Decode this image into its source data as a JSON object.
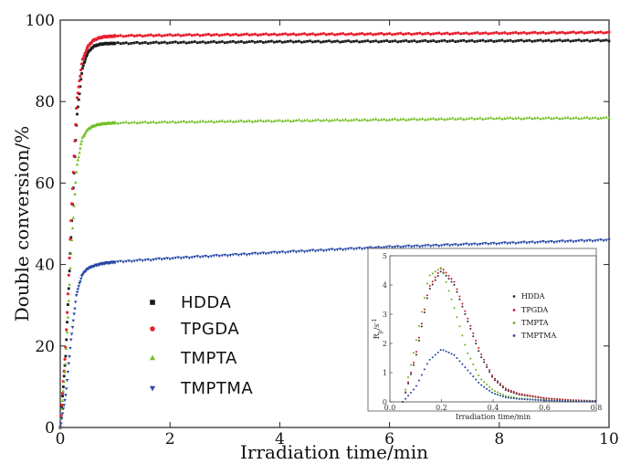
{
  "chart_data": [
    {
      "type": "scatter",
      "xlabel": "Irradiation time/min",
      "ylabel": "Double conversion/%",
      "xlim": [
        0,
        10
      ],
      "ylim": [
        0,
        100
      ],
      "xticks": [
        "0",
        "2",
        "4",
        "6",
        "8",
        "10"
      ],
      "yticks": [
        "0",
        "20",
        "40",
        "60",
        "80",
        "100"
      ],
      "grid": false,
      "legend_position": "bottom-left",
      "series": [
        {
          "name": "HDDA",
          "marker": "square",
          "color": "#1a1a1a",
          "x": [
            0,
            0.1,
            0.2,
            0.3,
            0.4,
            0.5,
            0.6,
            0.7,
            0.8,
            1.0,
            2,
            4,
            6,
            8,
            10
          ],
          "y": [
            0,
            18,
            48,
            76,
            88,
            92,
            93.5,
            94,
            94.2,
            94.3,
            94.5,
            94.7,
            94.8,
            94.9,
            95
          ]
        },
        {
          "name": "TPGDA",
          "marker": "circle",
          "color": "#e8202e",
          "x": [
            0,
            0.1,
            0.2,
            0.3,
            0.4,
            0.5,
            0.6,
            0.7,
            0.8,
            1.0,
            2,
            4,
            6,
            8,
            10
          ],
          "y": [
            0,
            20,
            52,
            80,
            90,
            93.5,
            95,
            95.6,
            95.9,
            96.1,
            96.3,
            96.5,
            96.6,
            96.8,
            97
          ]
        },
        {
          "name": "TMPTA",
          "marker": "triangle-up",
          "color": "#72bf22",
          "x": [
            0,
            0.1,
            0.2,
            0.3,
            0.4,
            0.5,
            0.6,
            0.7,
            0.8,
            1.0,
            2,
            4,
            6,
            8,
            10
          ],
          "y": [
            0,
            16,
            44,
            64,
            71,
            73.2,
            74,
            74.4,
            74.6,
            74.8,
            75,
            75.3,
            75.6,
            75.9,
            76
          ]
        },
        {
          "name": "TMPTMA",
          "marker": "triangle-down",
          "color": "#2747a6",
          "x": [
            0,
            0.1,
            0.2,
            0.3,
            0.4,
            0.5,
            0.6,
            0.7,
            0.8,
            1.0,
            2,
            4,
            6,
            8,
            10
          ],
          "y": [
            0,
            8,
            22,
            33,
            37.5,
            39,
            39.6,
            40,
            40.3,
            40.6,
            41.5,
            43,
            44.3,
            45.2,
            46
          ]
        }
      ]
    },
    {
      "type": "scatter",
      "position": "inset-bottom-right",
      "xlabel": "Irradiation time/min",
      "ylabel": "Rp/s-1",
      "xlim": [
        0,
        0.8
      ],
      "ylim": [
        0,
        5
      ],
      "xticks": [
        "0.0",
        "0.2",
        "0.4",
        "0.6",
        "0.8"
      ],
      "yticks": [
        "0",
        "1",
        "2",
        "3",
        "4",
        "5"
      ],
      "grid": false,
      "legend_position": "right",
      "series": [
        {
          "name": "HDDA",
          "color": "#2a2a2a",
          "x": [
            0.05,
            0.1,
            0.15,
            0.2,
            0.25,
            0.3,
            0.35,
            0.4,
            0.45,
            0.5,
            0.6,
            0.7,
            0.8
          ],
          "y": [
            0,
            1.5,
            3.8,
            4.5,
            4.0,
            2.8,
            1.6,
            0.8,
            0.4,
            0.25,
            0.12,
            0.06,
            0.03
          ]
        },
        {
          "name": "TPGDA",
          "color": "#c01c2c",
          "x": [
            0.05,
            0.1,
            0.15,
            0.2,
            0.25,
            0.3,
            0.35,
            0.4,
            0.45,
            0.5,
            0.6,
            0.7,
            0.8
          ],
          "y": [
            0,
            1.6,
            3.9,
            4.6,
            4.1,
            2.9,
            1.7,
            0.85,
            0.45,
            0.28,
            0.13,
            0.06,
            0.03
          ]
        },
        {
          "name": "TMPTA",
          "color": "#6aaa1e",
          "x": [
            0.05,
            0.1,
            0.15,
            0.2,
            0.25,
            0.3,
            0.35,
            0.4,
            0.45,
            0.5,
            0.6,
            0.7,
            0.8
          ],
          "y": [
            0,
            2.0,
            4.3,
            4.6,
            3.2,
            1.7,
            0.8,
            0.4,
            0.2,
            0.12,
            0.06,
            0.03,
            0.02
          ]
        },
        {
          "name": "TMPTMA",
          "color": "#24419a",
          "x": [
            0.05,
            0.1,
            0.15,
            0.2,
            0.25,
            0.3,
            0.35,
            0.4,
            0.45,
            0.5,
            0.6,
            0.7,
            0.8
          ],
          "y": [
            0,
            0.5,
            1.4,
            1.8,
            1.6,
            1.1,
            0.6,
            0.3,
            0.15,
            0.1,
            0.05,
            0.02,
            0.01
          ]
        }
      ]
    }
  ],
  "inset": {
    "ylabel_main": "R",
    "ylabel_sub": "p",
    "ylabel_unit": "/s",
    "ylabel_exp": "-1"
  }
}
